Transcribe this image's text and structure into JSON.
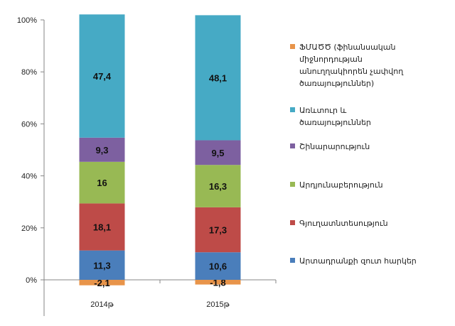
{
  "chart_data": {
    "type": "bar",
    "stacked": true,
    "categories": [
      "2014թ",
      "2015թ"
    ],
    "series": [
      {
        "name": "ՖՄԱԾԾ (ֆինանսական միջնորդության անուղղակիորեն չափվող ծառայություններ)",
        "values": [
          -2.1,
          -1.8
        ],
        "labels": [
          "-2,1",
          "-1,8"
        ],
        "color": "#E8944A"
      },
      {
        "name": "Արտադրանքի զուտ հարկեր",
        "values": [
          11.3,
          10.6
        ],
        "labels": [
          "11,3",
          "10,6"
        ],
        "color": "#4A7EBB"
      },
      {
        "name": "Գյուղատնտեսություն",
        "values": [
          18.1,
          17.3
        ],
        "labels": [
          "18,1",
          "17,3"
        ],
        "color": "#BE4B48"
      },
      {
        "name": "Արդյունաբերություն",
        "values": [
          16,
          16.3
        ],
        "labels": [
          "16",
          "16,3"
        ],
        "color": "#98B954"
      },
      {
        "name": "Շինարարություն",
        "values": [
          9.3,
          9.5
        ],
        "labels": [
          "9,3",
          "9,5"
        ],
        "color": "#7D60A0"
      },
      {
        "name": "Առևտուր և ծառայություններ",
        "values": [
          47.4,
          48.1
        ],
        "labels": [
          "47,4",
          "48,1"
        ],
        "color": "#46AAC5"
      }
    ],
    "legend_order": [
      0,
      5,
      4,
      3,
      2,
      1
    ],
    "ylim": [
      0,
      100
    ],
    "yticks": [
      "0%",
      "20%",
      "40%",
      "60%",
      "80%",
      "100%"
    ],
    "legend_position": "right",
    "grid": false,
    "title": "",
    "xlabel": "",
    "ylabel": ""
  }
}
